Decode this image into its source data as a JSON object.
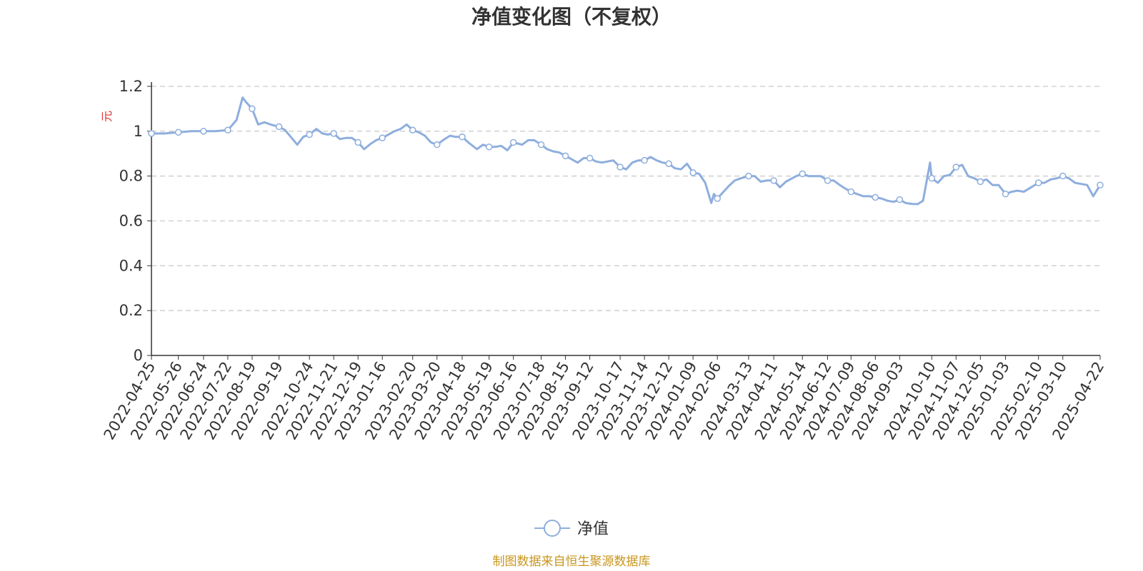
{
  "chart_data": {
    "type": "line",
    "title": "净值变化图（不复权）",
    "ylabel": "元",
    "ylim": [
      0,
      1.2
    ],
    "yticks": [
      "0",
      "0.2",
      "0.4",
      "0.6",
      "0.8",
      "1",
      "1.2"
    ],
    "grid": true,
    "legend_position": "bottom-center",
    "source_text": "制图数据来自恒生聚源数据库",
    "line_color": "#8eaedd",
    "xticks": [
      "2022-04-25",
      "2022-05-26",
      "2022-06-24",
      "2022-07-22",
      "2022-08-19",
      "2022-09-19",
      "2022-10-24",
      "2022-11-21",
      "2022-12-19",
      "2023-01-16",
      "2023-02-20",
      "2023-03-20",
      "2023-04-18",
      "2023-05-19",
      "2023-06-16",
      "2023-07-18",
      "2023-08-15",
      "2023-09-12",
      "2023-10-17",
      "2023-11-14",
      "2023-12-12",
      "2024-01-09",
      "2024-02-06",
      "2024-03-13",
      "2024-04-11",
      "2024-05-14",
      "2024-06-12",
      "2024-07-09",
      "2024-08-06",
      "2024-09-03",
      "2024-10-10",
      "2024-11-07",
      "2024-12-05",
      "2025-01-03",
      "2025-02-10",
      "2025-03-10",
      "2025-04-22"
    ],
    "series": [
      {
        "name": "净值",
        "x": [
          "2022-04-25",
          "2022-05-10",
          "2022-05-26",
          "2022-06-10",
          "2022-06-24",
          "2022-07-08",
          "2022-07-22",
          "2022-08-01",
          "2022-08-08",
          "2022-08-12",
          "2022-08-19",
          "2022-08-26",
          "2022-09-02",
          "2022-09-09",
          "2022-09-19",
          "2022-09-26",
          "2022-10-10",
          "2022-10-17",
          "2022-10-24",
          "2022-11-01",
          "2022-11-08",
          "2022-11-14",
          "2022-11-21",
          "2022-11-28",
          "2022-12-05",
          "2022-12-12",
          "2022-12-19",
          "2022-12-26",
          "2023-01-03",
          "2023-01-09",
          "2023-01-16",
          "2023-01-30",
          "2023-02-06",
          "2023-02-13",
          "2023-02-20",
          "2023-02-27",
          "2023-03-06",
          "2023-03-13",
          "2023-03-20",
          "2023-03-27",
          "2023-04-04",
          "2023-04-10",
          "2023-04-18",
          "2023-04-25",
          "2023-05-05",
          "2023-05-12",
          "2023-05-19",
          "2023-05-26",
          "2023-06-02",
          "2023-06-09",
          "2023-06-16",
          "2023-06-26",
          "2023-07-03",
          "2023-07-10",
          "2023-07-18",
          "2023-07-25",
          "2023-08-01",
          "2023-08-08",
          "2023-08-15",
          "2023-08-22",
          "2023-08-29",
          "2023-09-05",
          "2023-09-12",
          "2023-09-19",
          "2023-09-26",
          "2023-10-09",
          "2023-10-17",
          "2023-10-24",
          "2023-10-31",
          "2023-11-07",
          "2023-11-14",
          "2023-11-21",
          "2023-11-28",
          "2023-12-05",
          "2023-12-12",
          "2023-12-19",
          "2023-12-26",
          "2024-01-02",
          "2024-01-09",
          "2024-01-16",
          "2024-01-23",
          "2024-01-30",
          "2024-02-02",
          "2024-02-06",
          "2024-02-19",
          "2024-02-26",
          "2024-03-04",
          "2024-03-13",
          "2024-03-20",
          "2024-03-27",
          "2024-04-03",
          "2024-04-11",
          "2024-04-18",
          "2024-04-25",
          "2024-05-07",
          "2024-05-14",
          "2024-05-21",
          "2024-05-28",
          "2024-06-04",
          "2024-06-12",
          "2024-06-19",
          "2024-06-26",
          "2024-07-02",
          "2024-07-09",
          "2024-07-16",
          "2024-07-23",
          "2024-07-30",
          "2024-08-06",
          "2024-08-13",
          "2024-08-20",
          "2024-08-27",
          "2024-09-03",
          "2024-09-10",
          "2024-09-18",
          "2024-09-24",
          "2024-09-30",
          "2024-10-08",
          "2024-10-10",
          "2024-10-17",
          "2024-10-24",
          "2024-10-31",
          "2024-11-07",
          "2024-11-14",
          "2024-11-21",
          "2024-11-28",
          "2024-12-05",
          "2024-12-12",
          "2024-12-19",
          "2024-12-26",
          "2025-01-03",
          "2025-01-10",
          "2025-01-17",
          "2025-01-24",
          "2025-02-10",
          "2025-02-17",
          "2025-02-24",
          "2025-03-03",
          "2025-03-10",
          "2025-03-17",
          "2025-03-24",
          "2025-03-31",
          "2025-04-07",
          "2025-04-14",
          "2025-04-22"
        ],
        "y": [
          0.99,
          0.99,
          0.995,
          1.0,
          1.0,
          1.0,
          1.005,
          1.05,
          1.15,
          1.13,
          1.1,
          1.03,
          1.04,
          1.03,
          1.02,
          1.005,
          0.94,
          0.975,
          0.985,
          1.01,
          0.99,
          0.985,
          0.99,
          0.965,
          0.97,
          0.97,
          0.95,
          0.92,
          0.945,
          0.96,
          0.97,
          1.0,
          1.01,
          1.03,
          1.005,
          0.995,
          0.98,
          0.95,
          0.94,
          0.96,
          0.98,
          0.975,
          0.975,
          0.95,
          0.92,
          0.94,
          0.93,
          0.93,
          0.935,
          0.915,
          0.95,
          0.94,
          0.96,
          0.96,
          0.94,
          0.92,
          0.91,
          0.905,
          0.89,
          0.875,
          0.86,
          0.88,
          0.88,
          0.865,
          0.86,
          0.87,
          0.84,
          0.83,
          0.86,
          0.87,
          0.87,
          0.885,
          0.87,
          0.86,
          0.855,
          0.835,
          0.83,
          0.855,
          0.815,
          0.81,
          0.77,
          0.68,
          0.72,
          0.7,
          0.755,
          0.78,
          0.79,
          0.8,
          0.8,
          0.775,
          0.78,
          0.78,
          0.75,
          0.775,
          0.8,
          0.81,
          0.8,
          0.8,
          0.8,
          0.78,
          0.78,
          0.76,
          0.745,
          0.73,
          0.72,
          0.71,
          0.71,
          0.705,
          0.7,
          0.69,
          0.685,
          0.695,
          0.68,
          0.675,
          0.675,
          0.69,
          0.86,
          0.79,
          0.77,
          0.8,
          0.805,
          0.84,
          0.85,
          0.8,
          0.79,
          0.775,
          0.785,
          0.76,
          0.76,
          0.72,
          0.73,
          0.735,
          0.73,
          0.77,
          0.77,
          0.785,
          0.79,
          0.8,
          0.79,
          0.77,
          0.765,
          0.76,
          0.71,
          0.76
        ]
      }
    ]
  }
}
